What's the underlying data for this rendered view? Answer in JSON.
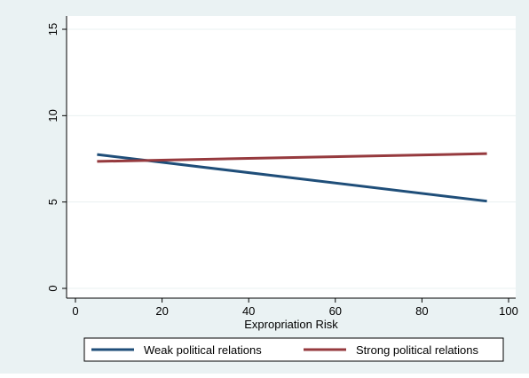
{
  "chart_data": {
    "type": "line",
    "title": "",
    "xlabel": "Expropriation Risk",
    "ylabel": "",
    "xlim": [
      0,
      100
    ],
    "ylim": [
      0,
      15
    ],
    "xticks": [
      0,
      20,
      40,
      60,
      80,
      100
    ],
    "yticks": [
      0,
      5,
      10,
      15
    ],
    "xtick_labels": [
      "0",
      "20",
      "40",
      "60",
      "80",
      "100"
    ],
    "ytick_labels": [
      "0",
      "5",
      "10",
      "15"
    ],
    "grid": "horizontal",
    "legend_position": "bottom",
    "series": [
      {
        "name": "Weak political relations",
        "color": "#1f4e79",
        "x": [
          5,
          95
        ],
        "y": [
          7.75,
          5.05
        ]
      },
      {
        "name": "Strong political relations",
        "color": "#963a3e",
        "x": [
          5,
          95
        ],
        "y": [
          7.35,
          7.8
        ]
      }
    ]
  },
  "colors": {
    "panel_background": "#eaf2f3",
    "plot_background": "#ffffff",
    "grid": "#e9f0f1"
  }
}
